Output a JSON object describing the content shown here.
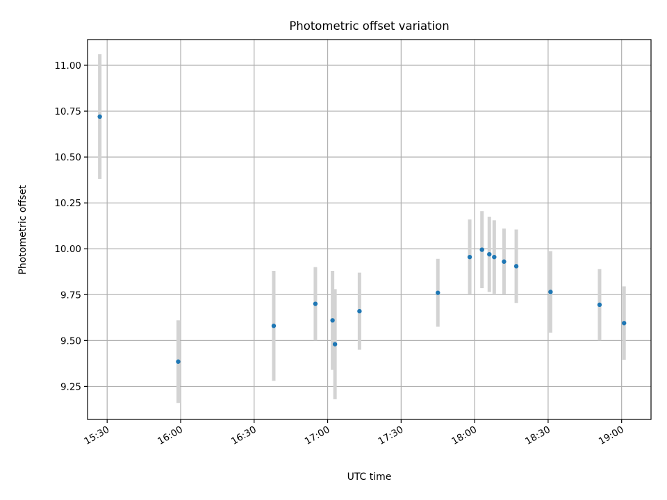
{
  "chart_data": {
    "type": "scatter",
    "title": "Photometric offset variation",
    "xlabel": "UTC time",
    "ylabel": "Photometric offset",
    "x_ticks": [
      "15:30",
      "16:00",
      "16:30",
      "17:00",
      "17:30",
      "18:00",
      "18:30",
      "19:00"
    ],
    "y_ticks": [
      "9.25",
      "9.50",
      "9.75",
      "10.00",
      "10.25",
      "10.50",
      "10.75",
      "11.00"
    ],
    "xlim": [
      "15:22",
      "19:12"
    ],
    "ylim": [
      9.07,
      11.14
    ],
    "grid": true,
    "marker_color": "#1f77b4",
    "errorbar_color": "#d3d3d3",
    "points": [
      {
        "x": "15:27",
        "y": 10.72,
        "err": 0.34
      },
      {
        "x": "15:59",
        "y": 9.385,
        "err": 0.225
      },
      {
        "x": "16:38",
        "y": 9.58,
        "err": 0.3
      },
      {
        "x": "16:55",
        "y": 9.7,
        "err": 0.2
      },
      {
        "x": "17:02",
        "y": 9.61,
        "err": 0.27
      },
      {
        "x": "17:03",
        "y": 9.48,
        "err": 0.3
      },
      {
        "x": "17:13",
        "y": 9.66,
        "err": 0.21
      },
      {
        "x": "17:45",
        "y": 9.76,
        "err": 0.185
      },
      {
        "x": "17:58",
        "y": 9.955,
        "err": 0.205
      },
      {
        "x": "18:03",
        "y": 9.995,
        "err": 0.21
      },
      {
        "x": "18:06",
        "y": 9.97,
        "err": 0.205
      },
      {
        "x": "18:08",
        "y": 9.955,
        "err": 0.2
      },
      {
        "x": "18:12",
        "y": 9.93,
        "err": 0.18
      },
      {
        "x": "18:17",
        "y": 9.905,
        "err": 0.2
      },
      {
        "x": "18:31",
        "y": 9.765,
        "err": 0.222
      },
      {
        "x": "18:51",
        "y": 9.695,
        "err": 0.195
      },
      {
        "x": "19:01",
        "y": 9.595,
        "err": 0.2
      }
    ]
  }
}
